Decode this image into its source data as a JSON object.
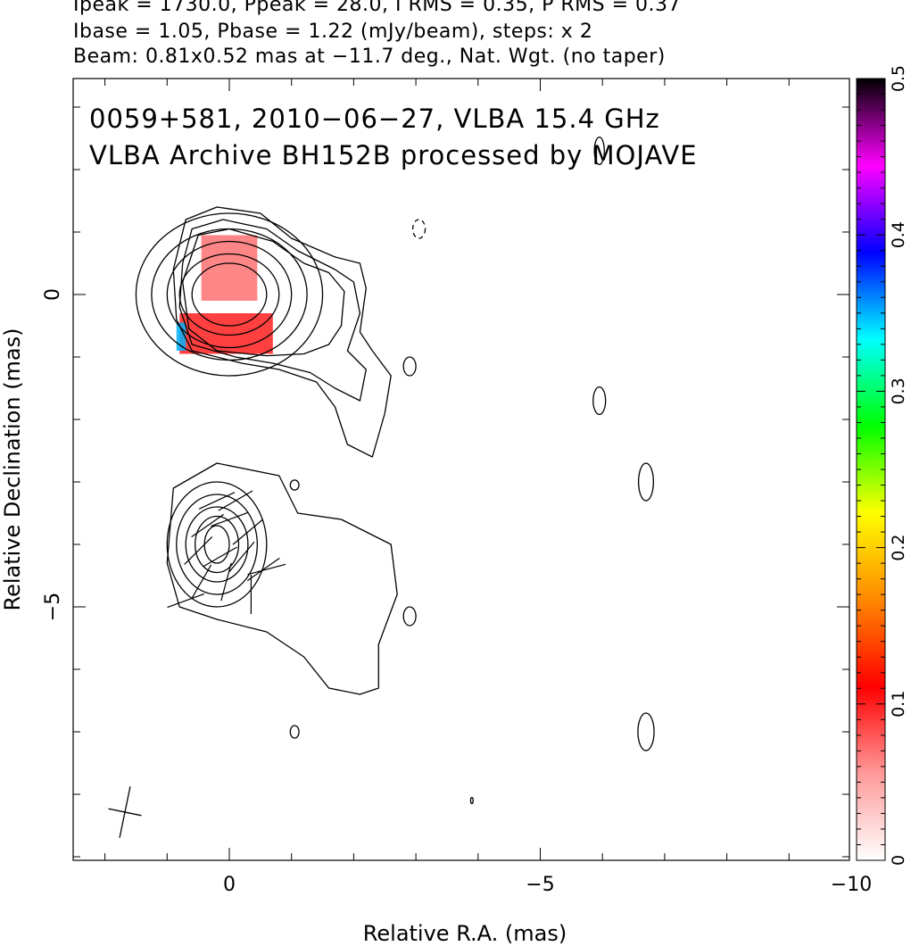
{
  "header": {
    "line1": "Ipeak = 1730.0, Ppeak = 28.0, I RMS = 0.35, P RMS = 0.37",
    "line2": "Ibase = 1.05, Pbase = 1.22 (mJy/beam), steps: x 2",
    "line3": "Beam: 0.81x0.52 mas at −11.7 deg., Nat. Wgt. (no taper)"
  },
  "chart_data": {
    "type": "heatmap",
    "title_line1": "0059+581, 2010−06−27, VLBA 15.4 GHz",
    "title_line2": "VLBA Archive BH152B processed by MOJAVE",
    "xlabel": "Relative R.A. (mas)",
    "ylabel": "Relative Declination (mas)",
    "xlim": [
      2.5,
      -10.0
    ],
    "ylim": [
      -9.0,
      3.5
    ],
    "x_ticks": [
      {
        "value": 0,
        "label": "0"
      },
      {
        "value": -5,
        "label": "−5"
      },
      {
        "value": -10,
        "label": "−10"
      }
    ],
    "y_ticks": [
      {
        "value": 0,
        "label": "0"
      },
      {
        "value": -5,
        "label": "−5"
      }
    ],
    "colorbar": {
      "range": [
        0,
        0.5
      ],
      "ticks": [
        {
          "value": 0,
          "label": "0"
        },
        {
          "value": 0.1,
          "label": "0.1"
        },
        {
          "value": 0.2,
          "label": "0.2"
        },
        {
          "value": 0.3,
          "label": "0.3"
        },
        {
          "value": 0.4,
          "label": "0.4"
        },
        {
          "value": 0.5,
          "label": "0.5"
        }
      ],
      "colors": [
        "#ffffff",
        "#ff9999",
        "#ff0000",
        "#ff8800",
        "#ffff00",
        "#00ff00",
        "#00ffff",
        "#0000ff",
        "#ff00ff",
        "#000000"
      ]
    },
    "beam": {
      "major_mas": 0.81,
      "minor_mas": 0.52,
      "pa_deg": -11.7
    },
    "upper_component": {
      "center": [
        0,
        0
      ],
      "contour_radii_mas": [
        [
          0.6,
          0.5
        ],
        [
          0.8,
          0.65
        ],
        [
          1.0,
          0.85
        ],
        [
          1.25,
          1.05
        ],
        [
          1.5,
          1.3
        ]
      ],
      "outer_contours": [
        [
          [
            0.7,
            1.2
          ],
          [
            0.2,
            1.4
          ],
          [
            -0.5,
            1.3
          ],
          [
            -1.0,
            0.9
          ],
          [
            -1.7,
            0.6
          ],
          [
            -2.1,
            0.5
          ],
          [
            -2.2,
            0.1
          ],
          [
            -2.1,
            -0.6
          ],
          [
            -2.3,
            -0.9
          ],
          [
            -2.6,
            -1.3
          ],
          [
            -2.5,
            -1.9
          ],
          [
            -2.3,
            -2.6
          ],
          [
            -1.9,
            -2.4
          ],
          [
            -1.7,
            -1.8
          ],
          [
            -1.4,
            -1.4
          ],
          [
            -0.8,
            -1.2
          ],
          [
            -0.2,
            -1.1
          ],
          [
            0.6,
            -0.9
          ],
          [
            0.85,
            -0.4
          ],
          [
            0.9,
            0.4
          ],
          [
            0.7,
            1.2
          ]
        ],
        [
          [
            0.6,
            1.05
          ],
          [
            0.1,
            1.2
          ],
          [
            -0.6,
            1.05
          ],
          [
            -1.1,
            0.7
          ],
          [
            -1.7,
            0.4
          ],
          [
            -2.0,
            0.2
          ],
          [
            -2.1,
            -0.3
          ],
          [
            -1.9,
            -0.9
          ],
          [
            -2.2,
            -1.2
          ],
          [
            -2.1,
            -1.7
          ],
          [
            -1.7,
            -1.5
          ],
          [
            -1.3,
            -1.25
          ],
          [
            -0.7,
            -1.1
          ],
          [
            -0.1,
            -1.0
          ],
          [
            0.6,
            -0.8
          ],
          [
            0.8,
            -0.2
          ],
          [
            0.75,
            0.5
          ],
          [
            0.6,
            1.05
          ]
        ],
        [
          [
            0.5,
            0.95
          ],
          [
            0.0,
            1.05
          ],
          [
            -0.7,
            0.85
          ],
          [
            -1.2,
            0.5
          ],
          [
            -1.6,
            0.35
          ],
          [
            -1.85,
            0.05
          ],
          [
            -1.8,
            -0.5
          ],
          [
            -1.6,
            -0.8
          ],
          [
            -1.2,
            -0.95
          ],
          [
            -0.6,
            -0.98
          ],
          [
            0.2,
            -0.9
          ],
          [
            0.65,
            -0.55
          ],
          [
            0.75,
            0.2
          ],
          [
            0.5,
            0.95
          ]
        ]
      ],
      "pol_patches": [
        {
          "x": [
            -0.45,
            0.45
          ],
          "y": [
            -0.1,
            0.95
          ],
          "frac": 0.07
        },
        {
          "x": [
            -0.7,
            0.8
          ],
          "y": [
            -0.95,
            -0.3
          ],
          "frac": 0.1
        },
        {
          "x": [
            0.7,
            0.85
          ],
          "y": [
            -0.9,
            -0.45
          ],
          "frac": 0.35
        }
      ]
    },
    "lower_component": {
      "center": [
        0.2,
        -4.0
      ],
      "contour_radii_mas": [
        [
          0.2,
          0.3
        ],
        [
          0.35,
          0.45
        ],
        [
          0.5,
          0.6
        ],
        [
          0.65,
          0.8
        ],
        [
          0.8,
          1.0
        ]
      ],
      "outer_contours": [
        [
          [
            0.9,
            -3.1
          ],
          [
            0.2,
            -2.7
          ],
          [
            -0.8,
            -2.9
          ],
          [
            -1.1,
            -3.5
          ],
          [
            -1.8,
            -3.6
          ],
          [
            -2.6,
            -4.0
          ],
          [
            -2.7,
            -4.8
          ],
          [
            -2.4,
            -5.6
          ],
          [
            -2.4,
            -6.3
          ],
          [
            -2.1,
            -6.4
          ],
          [
            -1.6,
            -6.3
          ],
          [
            -1.2,
            -5.8
          ],
          [
            -0.6,
            -5.4
          ],
          [
            0.2,
            -5.2
          ],
          [
            0.8,
            -5.0
          ],
          [
            1.0,
            -4.3
          ],
          [
            0.9,
            -3.1
          ]
        ]
      ],
      "evpa_vectors": [
        {
          "pos": [
            0.2,
            -3.3
          ],
          "angle_deg": 25
        },
        {
          "pos": [
            -0.1,
            -3.3
          ],
          "angle_deg": 30
        },
        {
          "pos": [
            0.35,
            -3.7
          ],
          "angle_deg": 35
        },
        {
          "pos": [
            0.0,
            -3.6
          ],
          "angle_deg": 20
        },
        {
          "pos": [
            -0.3,
            -3.8
          ],
          "angle_deg": 40
        },
        {
          "pos": [
            0.5,
            -4.1
          ],
          "angle_deg": 45
        },
        {
          "pos": [
            0.15,
            -4.2
          ],
          "angle_deg": 30
        },
        {
          "pos": [
            -0.2,
            -4.2
          ],
          "angle_deg": 50
        },
        {
          "pos": [
            -0.55,
            -4.4
          ],
          "angle_deg": 35
        },
        {
          "pos": [
            0.45,
            -4.6
          ],
          "angle_deg": 60
        },
        {
          "pos": [
            0.05,
            -4.6
          ],
          "angle_deg": 75
        },
        {
          "pos": [
            -0.35,
            -4.8
          ],
          "angle_deg": 90
        },
        {
          "pos": [
            0.7,
            -4.9
          ],
          "angle_deg": 20
        },
        {
          "pos": [
            -0.6,
            -4.4
          ],
          "angle_deg": 15
        }
      ]
    },
    "noise_contours": [
      {
        "center": [
          -3.05,
          1.05
        ],
        "rx": 0.1,
        "ry": 0.15,
        "dashed": true
      },
      {
        "center": [
          -2.9,
          -1.15
        ],
        "rx": 0.1,
        "ry": 0.15
      },
      {
        "center": [
          -5.95,
          -1.7
        ],
        "rx": 0.1,
        "ry": 0.22
      },
      {
        "center": [
          -6.7,
          -3.0
        ],
        "rx": 0.12,
        "ry": 0.3
      },
      {
        "center": [
          -1.05,
          -3.05
        ],
        "rx": 0.07,
        "ry": 0.08
      },
      {
        "center": [
          -2.9,
          -5.15
        ],
        "rx": 0.1,
        "ry": 0.15
      },
      {
        "center": [
          -6.7,
          -7.0
        ],
        "rx": 0.13,
        "ry": 0.3
      },
      {
        "center": [
          -1.05,
          -7.0
        ],
        "rx": 0.07,
        "ry": 0.1
      },
      {
        "center": [
          -3.9,
          -8.1
        ],
        "rx": 0.02,
        "ry": 0.05
      },
      {
        "center": [
          -5.95,
          2.3
        ],
        "rx": 0.08,
        "ry": 0.22
      }
    ]
  }
}
